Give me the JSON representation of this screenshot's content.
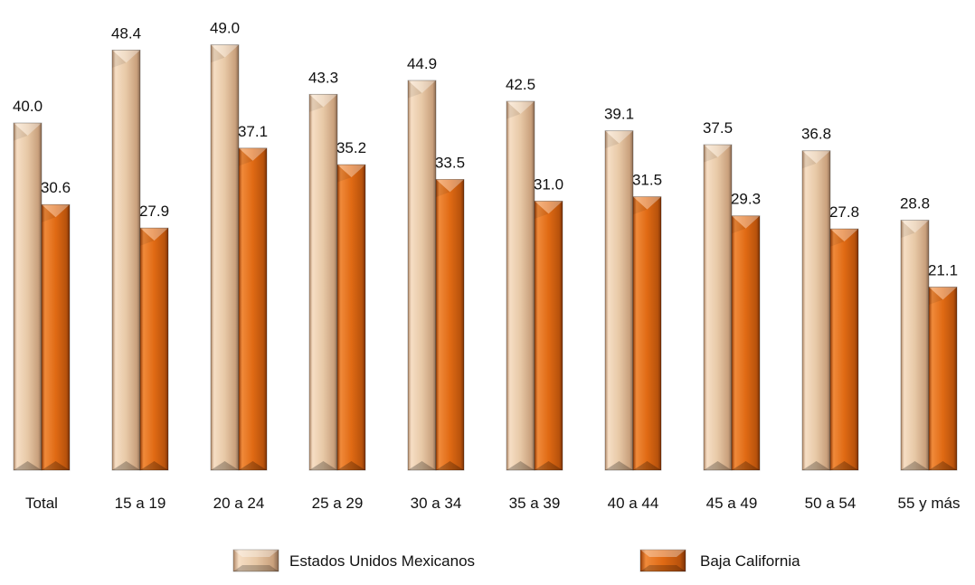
{
  "chart_data": {
    "type": "bar",
    "categories": [
      "Total",
      "15 a 19",
      "20 a 24",
      "25 a 29",
      "30 a 34",
      "35 a 39",
      "40 a 44",
      "45 a 49",
      "50 a 54",
      "55 y más"
    ],
    "series": [
      {
        "name": "Estados Unidos Mexicanos",
        "values": [
          40.0,
          48.4,
          49.0,
          43.3,
          44.9,
          42.5,
          39.1,
          37.5,
          36.8,
          28.8
        ],
        "color": "#E3C2A0"
      },
      {
        "name": "Baja California",
        "values": [
          30.6,
          27.9,
          37.1,
          35.2,
          33.5,
          31.0,
          31.5,
          29.3,
          27.8,
          21.1
        ],
        "color": "#E06A14"
      }
    ],
    "ylim": [
      0,
      50
    ],
    "grid": false,
    "legend": "bottom",
    "data_labels": true
  }
}
